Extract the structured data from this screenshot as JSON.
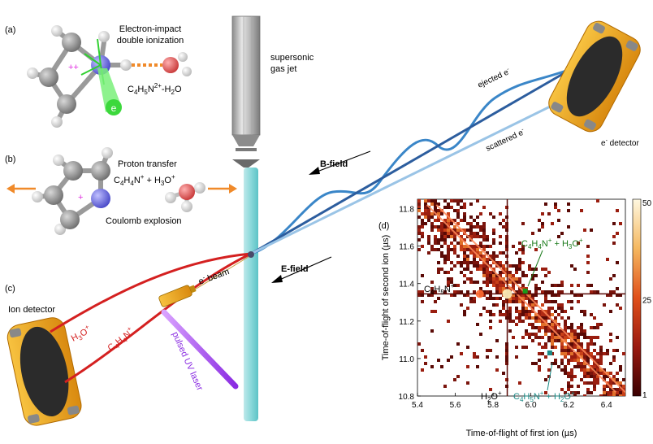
{
  "panels": {
    "a": {
      "tag": "(a)",
      "title_line1": "Electron-impact",
      "title_line2": "double ionization",
      "charge": "++",
      "electron": "e",
      "formula_parts": [
        "C",
        "4",
        "H",
        "5",
        "N",
        "2+",
        "-H",
        "2",
        "O"
      ]
    },
    "b": {
      "tag": "(b)",
      "title": "Proton transfer",
      "reaction_parts": [
        "C",
        "4",
        "H",
        "4",
        "N",
        "+",
        " + H",
        "3",
        "O",
        "+"
      ],
      "charge": "+",
      "caption": "Coulomb explosion"
    },
    "c": {
      "tag": "(c)",
      "ion_detector": "Ion detector",
      "h3o_parts": [
        "H",
        "3",
        "O",
        "+"
      ],
      "c4h4n_parts": [
        "C",
        "4",
        "H",
        "4",
        "N",
        "+"
      ],
      "laser": "pulsed UV laser",
      "ebeam_parts": [
        "e",
        "-",
        " beam"
      ]
    },
    "d": {
      "tag": "(d)"
    },
    "setup": {
      "gas_jet_line1": "supersonic",
      "gas_jet_line2": "gas jet",
      "bfield": "B-field",
      "efield": "E-field",
      "ejected_parts": [
        "ejected e",
        "-"
      ],
      "scattered_parts": [
        "scattered e",
        "-"
      ],
      "detector_parts": [
        "e",
        "-",
        " detector"
      ]
    },
    "colors": {
      "carbon": "#8c8c8c",
      "hydrogen": "#f2f2f2",
      "nitrogen": "#6f6fe6",
      "oxygen": "#e26262",
      "detector_gold": "#f0a020",
      "ion_path": "#d42020",
      "electron_path": "#2a7ac0",
      "laser": "#a040e0",
      "jet": "#7fd6d8",
      "arrow_orange": "#f08a2a"
    }
  },
  "chart_data": {
    "type": "heatmap",
    "xlabel": "Time-of-flight of first ion (µs)",
    "ylabel": "Time-of-flight of second ion (µs)",
    "xlim": [
      5.4,
      6.5
    ],
    "ylim": [
      10.8,
      11.85
    ],
    "xticks": [
      "5.4",
      "5.6",
      "5.8",
      "6.0",
      "6.2",
      "6.4"
    ],
    "yticks": [
      "10.8",
      "11.0",
      "11.2",
      "11.4",
      "11.6",
      "11.8"
    ],
    "colorbar": {
      "ticks": [
        "1",
        "25",
        "50"
      ],
      "min": 1,
      "max": 50,
      "mid": 25
    },
    "vertical_line_x": 5.875,
    "horizontal_line_y": 11.345,
    "diagonals": [
      {
        "x": [
          5.45,
          6.45
        ],
        "y": [
          11.82,
          10.82
        ]
      },
      {
        "x": [
          5.5,
          6.5
        ],
        "y": [
          11.82,
          10.82
        ]
      }
    ],
    "annotations": {
      "c4h5n_parts": [
        "C",
        "4",
        "H",
        "5",
        "N",
        "+"
      ],
      "c4h4n_h3o_parts": [
        "C",
        "4",
        "H",
        "4",
        "N",
        "+",
        " + H",
        "3",
        "O",
        "+"
      ],
      "h2o_parts": [
        "H",
        "2",
        "O",
        "+"
      ],
      "c4h5n_h2o_parts": [
        "C",
        "4",
        "H",
        "5",
        "N",
        "+",
        " + H",
        "2",
        "O",
        "+"
      ]
    },
    "markers": [
      {
        "label": "C4H4N+ + H3O+",
        "x": 5.97,
        "y": 11.36
      },
      {
        "label": "C4H5N+ + H2O+",
        "x": 6.1,
        "y": 11.03
      }
    ]
  }
}
